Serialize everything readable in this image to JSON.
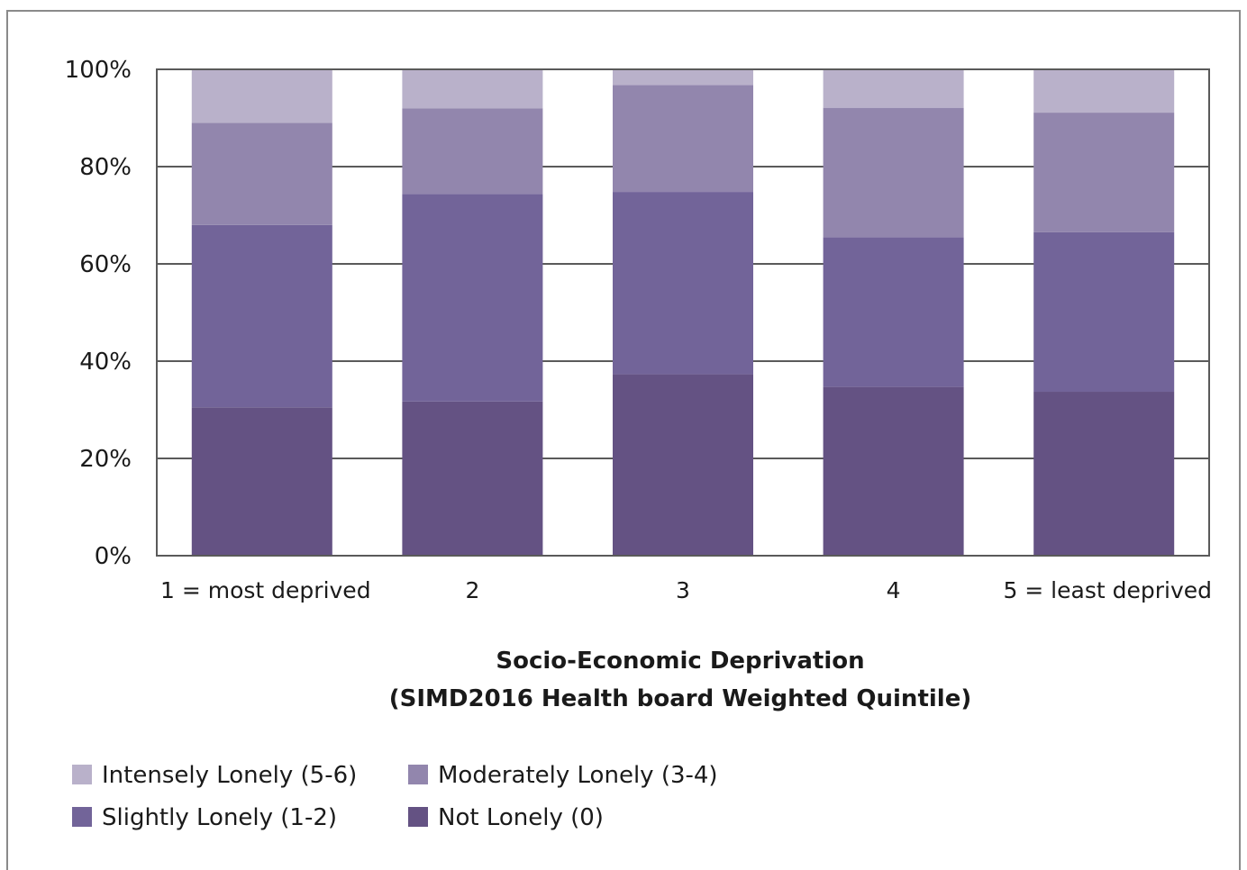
{
  "chart_data": {
    "type": "bar",
    "stacked": true,
    "percent": true,
    "title": "",
    "xlabel_lines": [
      "Socio-Economic Deprivation",
      "(SIMD2016 Health board Weighted Quintile)"
    ],
    "ylabel": "",
    "ylim": [
      0,
      100
    ],
    "yticks": [
      0,
      20,
      40,
      60,
      80,
      100
    ],
    "ytick_suffix": "%",
    "grid": true,
    "legend_position": "bottom-left",
    "categories": [
      "1 = most deprived",
      "2",
      "3",
      "4",
      "5 = least deprived"
    ],
    "series": [
      {
        "name": "Not Lonely (0)",
        "color": "#645283",
        "values": [
          30.5,
          31.7,
          37.3,
          34.7,
          33.7
        ]
      },
      {
        "name": "Slightly Lonely (1-2)",
        "color": "#726499",
        "values": [
          37.5,
          42.7,
          37.5,
          30.8,
          32.8
        ]
      },
      {
        "name": "Moderately Lonely (3-4)",
        "color": "#9286ad",
        "values": [
          21.0,
          17.6,
          22.0,
          26.6,
          24.6
        ]
      },
      {
        "name": "Intensely Lonely (5-6)",
        "color": "#b9b1ca",
        "values": [
          11.0,
          8.0,
          3.2,
          7.9,
          8.9
        ]
      }
    ],
    "legend_order": [
      "Intensely Lonely (5-6)",
      "Moderately Lonely (3-4)",
      "Slightly Lonely (1-2)",
      "Not Lonely (0)"
    ]
  }
}
